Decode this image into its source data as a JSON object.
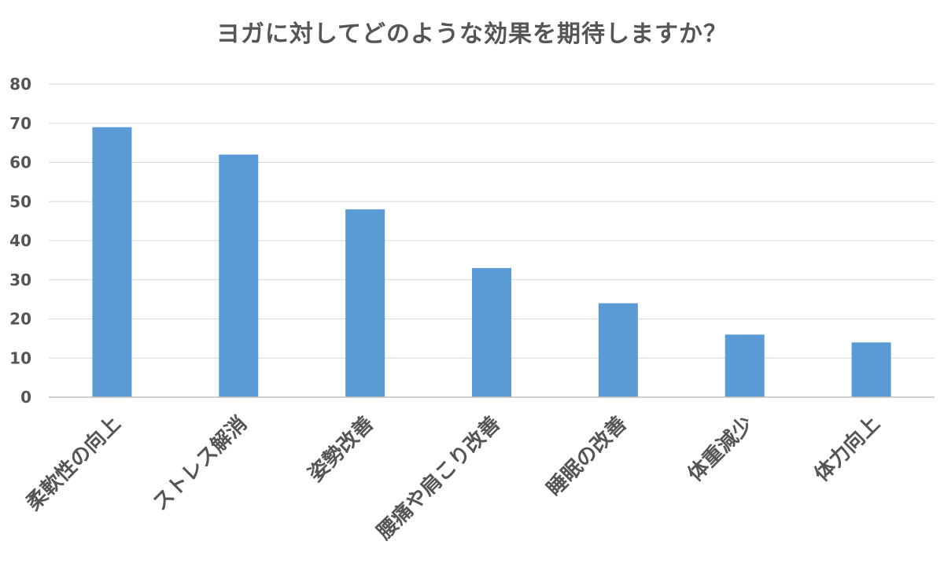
{
  "chart_data": {
    "type": "bar",
    "title": "ヨガに対してどのような効果を期待しますか？",
    "categories": [
      "柔軟性の向上",
      "ストレス解消",
      "姿勢改善",
      "腰痛や肩こり改善",
      "睡眠の改善",
      "体重減少",
      "体力向上"
    ],
    "values": [
      69,
      62,
      48,
      33,
      24,
      16,
      14
    ],
    "xlabel": "",
    "ylabel": "",
    "ylim": [
      0,
      80
    ],
    "yticks": [
      0,
      10,
      20,
      30,
      40,
      50,
      60,
      70,
      80
    ],
    "grid": true,
    "legend": "none",
    "bar_color": "#5b9bd5",
    "grid_color": "#d9d9d9",
    "text_color": "#555555"
  }
}
